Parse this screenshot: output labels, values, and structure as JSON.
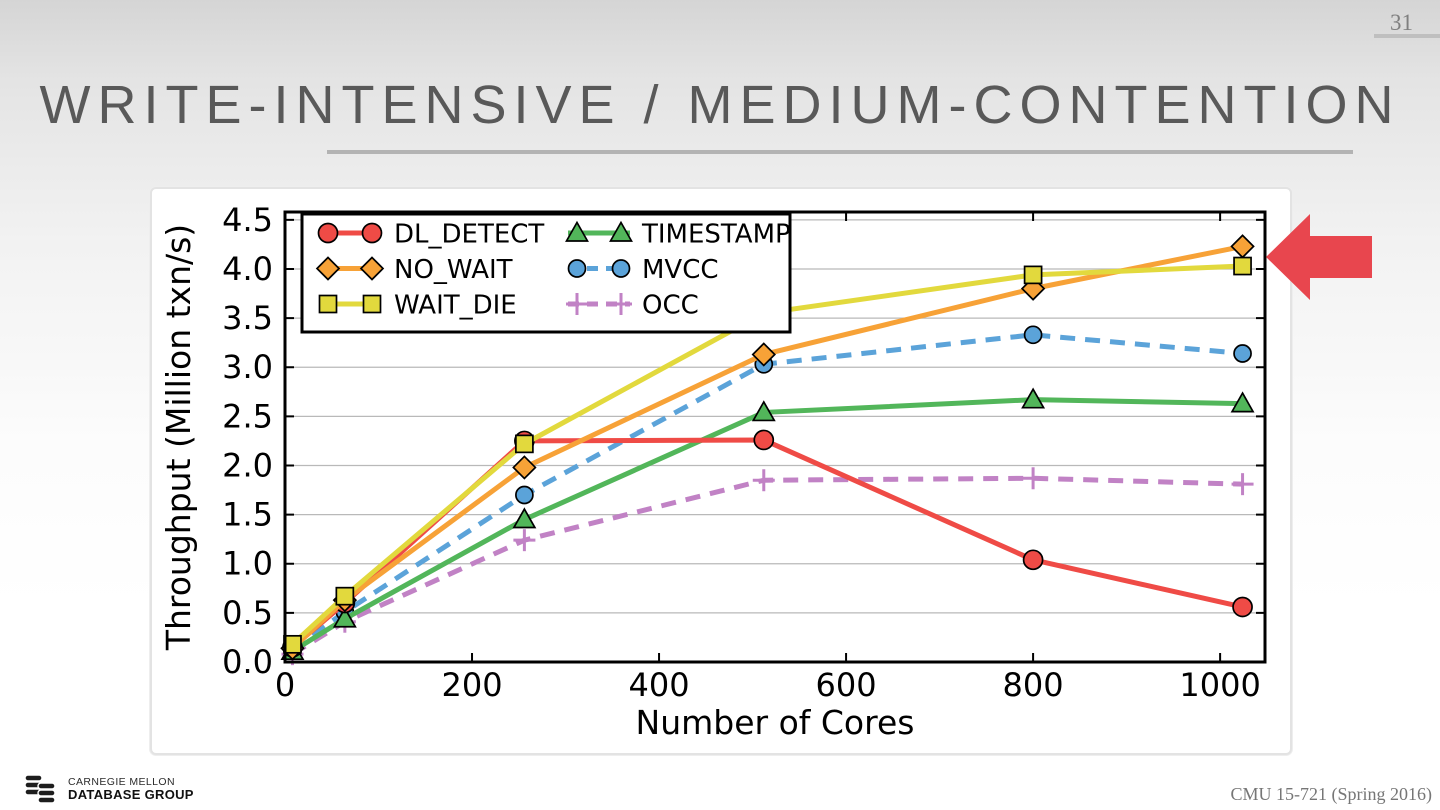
{
  "page_number": "31",
  "title": "WRITE-INTENSIVE / MEDIUM-CONTENTION",
  "footer": {
    "logo_line1": "CARNEGIE MELLON",
    "logo_line2": "DATABASE GROUP",
    "course": "CMU 15-721 (Spring 2016)"
  },
  "annotation": {
    "arrow_color": "#e8464e"
  },
  "chart_data": {
    "type": "line",
    "title": "",
    "xlabel": "Number of Cores",
    "ylabel": "Throughput (Million txn/s)",
    "xlim": [
      0,
      1048
    ],
    "ylim": [
      0,
      4.58
    ],
    "xticks": [
      0,
      200,
      400,
      600,
      800,
      1000
    ],
    "yticks": [
      0,
      0.5,
      1,
      1.5,
      2,
      2.5,
      3,
      3.5,
      4,
      4.5
    ],
    "grid": "horizontal-only",
    "legend_position": "upper-left",
    "x": [
      8,
      64,
      256,
      512,
      800,
      1024
    ],
    "series": [
      {
        "name": "DL_DETECT",
        "color": "#ef4b46",
        "marker": "circle",
        "dashed": false,
        "values": [
          0.15,
          0.6,
          2.25,
          2.26,
          1.04,
          0.56
        ]
      },
      {
        "name": "NO_WAIT",
        "color": "#f7a237",
        "marker": "diamond",
        "dashed": false,
        "values": [
          0.14,
          0.63,
          1.98,
          3.13,
          3.8,
          4.23
        ]
      },
      {
        "name": "WAIT_DIE",
        "color": "#e2d93d",
        "marker": "square",
        "dashed": false,
        "values": [
          0.18,
          0.67,
          2.22,
          3.55,
          3.94,
          4.03
        ]
      },
      {
        "name": "TIMESTAMP",
        "color": "#52b65a",
        "marker": "triangle",
        "dashed": false,
        "values": [
          0.11,
          0.44,
          1.45,
          2.54,
          2.67,
          2.63
        ]
      },
      {
        "name": "MVCC",
        "color": "#5ba3d9",
        "marker": "circle-small",
        "dashed": true,
        "values": [
          0.12,
          0.51,
          1.7,
          3.03,
          3.33,
          3.14
        ]
      },
      {
        "name": "OCC",
        "color": "#c182c5",
        "marker": "plus",
        "dashed": true,
        "values": [
          0.08,
          0.41,
          1.24,
          1.85,
          1.87,
          1.81
        ]
      }
    ],
    "draw_order": [
      5,
      4,
      3,
      0,
      1,
      2
    ]
  }
}
